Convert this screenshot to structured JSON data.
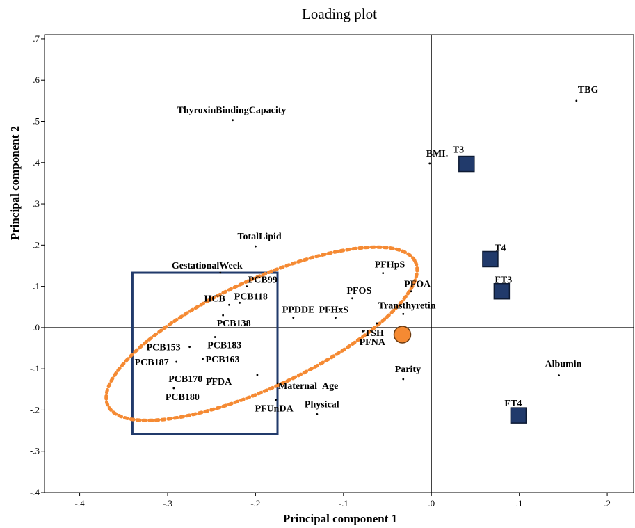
{
  "chart_data": {
    "type": "scatter",
    "title": "Loading plot",
    "xlabel": "Principal component 1",
    "ylabel": "Principal component 2",
    "xlim": [
      -0.44,
      0.23
    ],
    "ylim": [
      -0.4,
      0.71
    ],
    "xticks": [
      -0.4,
      -0.3,
      -0.2,
      -0.1,
      0.0,
      0.1,
      0.2
    ],
    "xtick_labels": [
      "-.4",
      "-.3",
      "-.2",
      "-.1",
      ".0",
      ".1",
      ".2"
    ],
    "yticks": [
      -0.4,
      -0.3,
      -0.2,
      -0.1,
      0.0,
      0.1,
      0.2,
      0.3,
      0.4,
      0.5,
      0.6,
      0.7
    ],
    "ytick_labels": [
      "-.4",
      "-.3",
      "-.2",
      "-.1",
      ".0",
      ".1",
      ".2",
      ".3",
      ".4",
      ".5",
      ".6",
      ".7"
    ],
    "reference_lines": {
      "x": 0.0,
      "y": 0.0
    },
    "grid": false,
    "points": [
      {
        "label": "TBG",
        "x": 0.165,
        "y": 0.55
      },
      {
        "label": "ThyroxinBindingCapacity",
        "x": -0.226,
        "y": 0.503
      },
      {
        "label": "BMI.",
        "x": -0.002,
        "y": 0.398
      },
      {
        "label": "TotalLipid",
        "x": -0.2,
        "y": 0.197
      },
      {
        "label": "GestationalWeek",
        "x": -0.24,
        "y": 0.133
      },
      {
        "label": "PCB99",
        "x": -0.21,
        "y": 0.1
      },
      {
        "label": "PCB118",
        "x": -0.218,
        "y": 0.06
      },
      {
        "label": "HCB",
        "x": -0.23,
        "y": 0.055
      },
      {
        "label": "PCB138",
        "x": -0.237,
        "y": 0.03
      },
      {
        "label": "PPDDE",
        "x": -0.157,
        "y": 0.024
      },
      {
        "label": "PFHpS",
        "x": -0.055,
        "y": 0.132
      },
      {
        "label": "PFOS",
        "x": -0.09,
        "y": 0.071
      },
      {
        "label": "PFOA",
        "x": -0.023,
        "y": 0.088
      },
      {
        "label": "PFHxS",
        "x": -0.109,
        "y": 0.024
      },
      {
        "label": "Transthyretin",
        "x": -0.032,
        "y": 0.033
      },
      {
        "label": "TSH",
        "x": -0.062,
        "y": 0.01
      },
      {
        "label": "PFNA",
        "x": -0.078,
        "y": -0.009
      },
      {
        "label": "PCB183",
        "x": -0.246,
        "y": -0.023
      },
      {
        "label": "PCB153",
        "x": -0.275,
        "y": -0.047
      },
      {
        "label": "PCB163",
        "x": -0.26,
        "y": -0.076
      },
      {
        "label": "PCB187",
        "x": -0.29,
        "y": -0.083
      },
      {
        "label": "PCB170",
        "x": -0.25,
        "y": -0.123
      },
      {
        "label": "PCB180",
        "x": -0.293,
        "y": -0.147
      },
      {
        "label": "PFDA",
        "x": -0.198,
        "y": -0.115
      },
      {
        "label": "Maternal_Age",
        "x": -0.175,
        "y": -0.135
      },
      {
        "label": "PFUnDA",
        "x": -0.177,
        "y": -0.175
      },
      {
        "label": "Physical",
        "x": -0.13,
        "y": -0.21
      },
      {
        "label": "Parity",
        "x": -0.032,
        "y": -0.125
      },
      {
        "label": "Albumin",
        "x": 0.145,
        "y": -0.116
      }
    ],
    "highlights": {
      "squares": [
        {
          "label": "T3",
          "x": 0.04,
          "y": 0.397,
          "color": "#213a6b"
        },
        {
          "label": "T4",
          "x": 0.067,
          "y": 0.166,
          "color": "#213a6b"
        },
        {
          "label": "FT3",
          "x": 0.08,
          "y": 0.088,
          "color": "#213a6b"
        },
        {
          "label": "FT4",
          "x": 0.099,
          "y": -0.213,
          "color": "#213a6b"
        }
      ],
      "circle": {
        "x": -0.033,
        "y": -0.017,
        "color": "#f58a33"
      },
      "box": {
        "x0": -0.34,
        "x1": -0.175,
        "y0": -0.258,
        "y1": 0.133,
        "color": "#213a6b"
      },
      "ellipse": {
        "cx": -0.193,
        "cy": -0.015,
        "rx": 0.193,
        "ry": 0.061,
        "angle_deg": -25,
        "color": "#f58a33"
      }
    }
  }
}
